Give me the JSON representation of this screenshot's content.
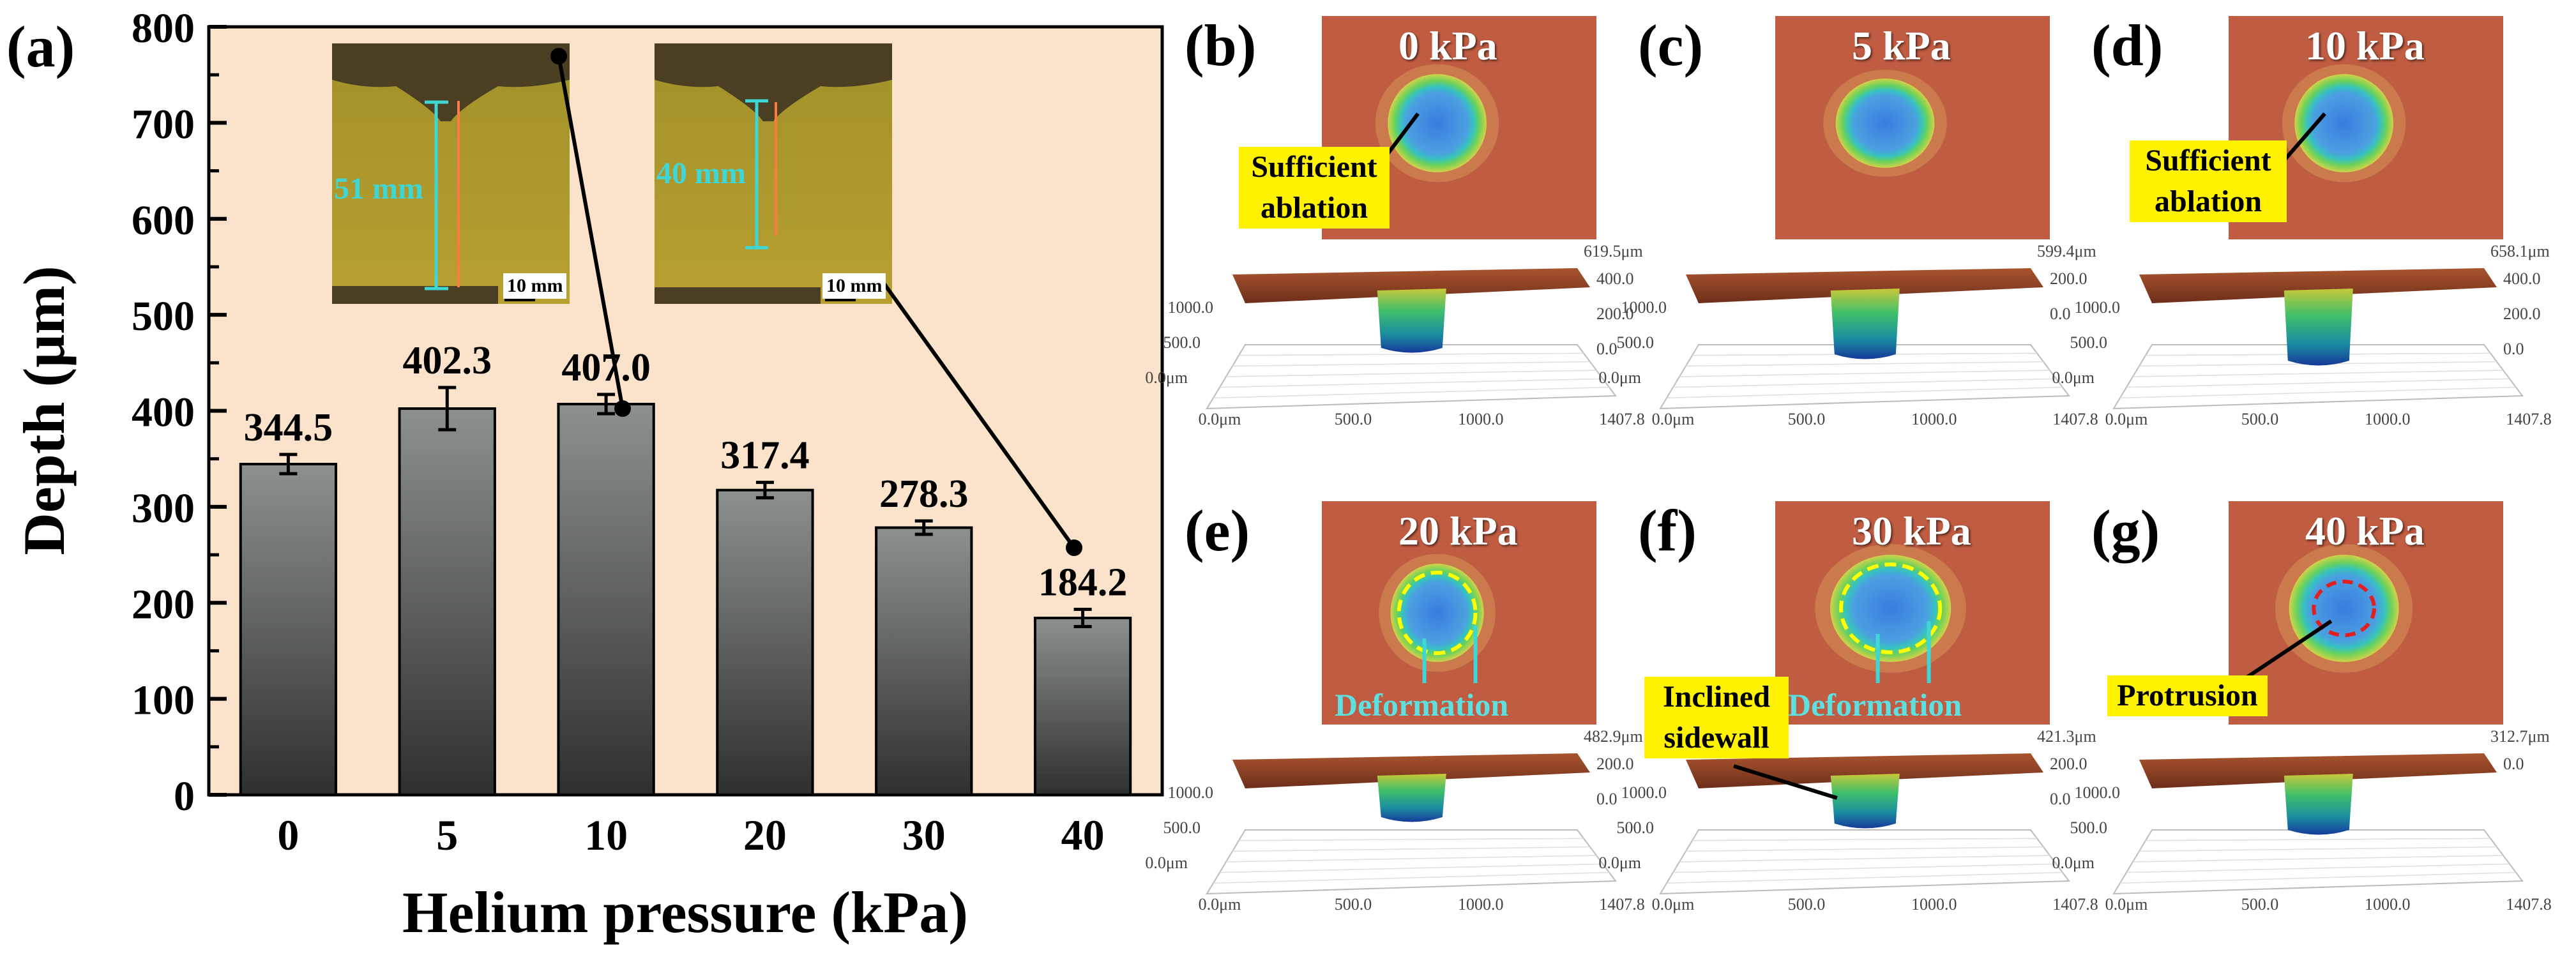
{
  "panel_labels": {
    "a": "(a)",
    "b": "(b)",
    "c": "(c)",
    "d": "(d)",
    "e": "(e)",
    "f": "(f)",
    "g": "(g)"
  },
  "chart_data": {
    "type": "bar",
    "title": "",
    "xlabel": "Helium pressure (kPa)",
    "ylabel": "Depth (μm)",
    "categories": [
      "0",
      "5",
      "10",
      "20",
      "30",
      "40"
    ],
    "values": [
      344.5,
      402.3,
      407.0,
      317.4,
      278.3,
      184.2
    ],
    "value_labels": [
      "344.5",
      "402.3",
      "407.0",
      "317.4",
      "278.3",
      "184.2"
    ],
    "errors": [
      10,
      22,
      10,
      8,
      7,
      9
    ],
    "ylim": [
      0,
      800
    ],
    "yticks": [
      "0",
      "100",
      "200",
      "300",
      "400",
      "500",
      "600",
      "700",
      "800"
    ],
    "colors": {
      "background": "#fbe3cb",
      "bar_top": "#8d918d",
      "bar_bottom": "#2e302e"
    }
  },
  "insets": [
    {
      "length": "51 mm",
      "scale": "10 mm"
    },
    {
      "length": "40 mm",
      "scale": "10 mm"
    }
  ],
  "panels": [
    {
      "id": "b",
      "pressure": "0 kPa",
      "annotation": "Sufficient ablation",
      "max_label": "619.5μm",
      "z_labels": [
        "400.0",
        "200.0",
        "0.0"
      ],
      "y_labels": [
        "1000.0",
        "500.0",
        "0.0μm"
      ],
      "x_labels": [
        "0.0μm",
        "500.0",
        "1000.0",
        "1407.8"
      ]
    },
    {
      "id": "c",
      "pressure": "5 kPa",
      "annotation": "",
      "max_label": "599.4μm",
      "z_labels": [
        "200.0",
        "0.0"
      ],
      "y_labels": [
        "1000.0",
        "500.0",
        "0.0μm"
      ],
      "x_labels": [
        "0.0μm",
        "500.0",
        "1000.0",
        "1407.8"
      ]
    },
    {
      "id": "d",
      "pressure": "10 kPa",
      "annotation": "Sufficient ablation",
      "max_label": "658.1μm",
      "z_labels": [
        "400.0",
        "200.0",
        "0.0"
      ],
      "y_labels": [
        "1000.0",
        "500.0",
        "0.0μm"
      ],
      "x_labels": [
        "0.0μm",
        "500.0",
        "1000.0",
        "1407.8"
      ]
    },
    {
      "id": "e",
      "pressure": "20 kPa",
      "annotation": "Deformation",
      "max_label": "482.9μm",
      "z_labels": [
        "200.0",
        "0.0"
      ],
      "y_labels": [
        "1000.0",
        "500.0",
        "0.0μm"
      ],
      "x_labels": [
        "0.0μm",
        "500.0",
        "1000.0",
        "1407.8"
      ]
    },
    {
      "id": "f",
      "pressure": "30 kPa",
      "annotation": "Deformation",
      "annotation2": "Inclined sidewall",
      "max_label": "421.3μm",
      "z_labels": [
        "200.0",
        "0.0"
      ],
      "y_labels": [
        "1000.0",
        "500.0",
        "0.0μm"
      ],
      "x_labels": [
        "0.0μm",
        "500.0",
        "1000.0",
        "1407.8"
      ]
    },
    {
      "id": "g",
      "pressure": "40 kPa",
      "annotation": "Protrusion",
      "max_label": "312.7μm",
      "z_labels": [
        "0.0"
      ],
      "y_labels": [
        "1000.0",
        "500.0",
        "0.0μm"
      ],
      "x_labels": [
        "0.0μm",
        "500.0",
        "1000.0",
        "1407.8"
      ]
    }
  ]
}
